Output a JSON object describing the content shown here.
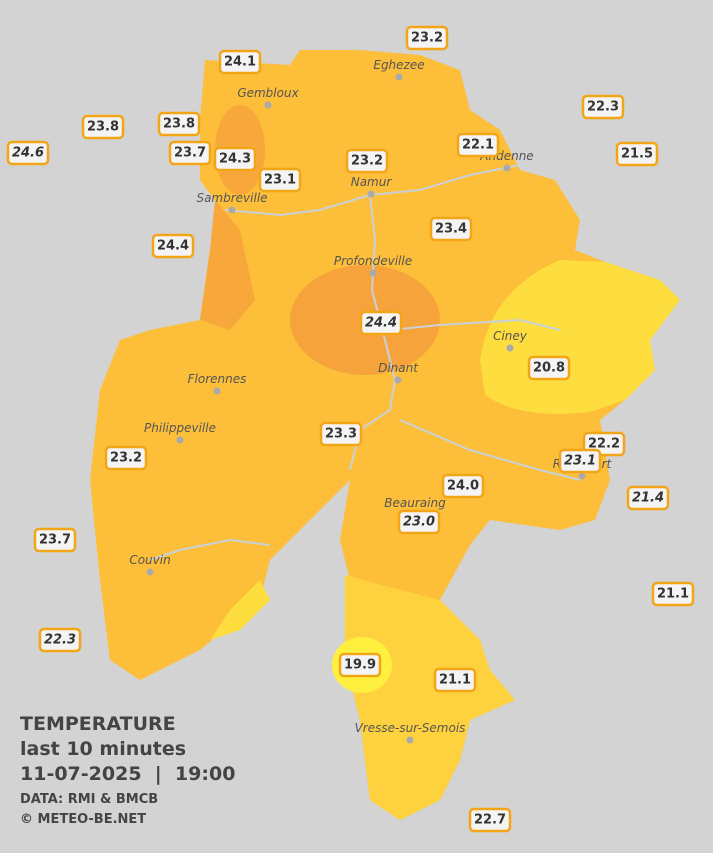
{
  "legend": {
    "title": "TEMPERATURE",
    "subtitle": "last 10 minutes",
    "datetime": "11-07-2025  |  19:00",
    "source": "DATA: RMI & BMCB",
    "copyright": "© METEO-BE.NET"
  },
  "cities": [
    "Eghezee",
    "Gembloux",
    "Andenne",
    "Namur",
    "Sambreville",
    "Profondeville",
    "Ciney",
    "Dinant",
    "Florennes",
    "Philippeville",
    "Couvin",
    "Vresse-sur-Semois",
    "Beauraing",
    "Rochefort"
  ],
  "stations": [
    {
      "label": "24.1"
    },
    {
      "label": "23.2"
    },
    {
      "label": "23.8"
    },
    {
      "label": "23.8"
    },
    {
      "label": "22.3"
    },
    {
      "label": "24.6",
      "italic": true
    },
    {
      "label": "23.7"
    },
    {
      "label": "24.3"
    },
    {
      "label": "23.2"
    },
    {
      "label": "22.1"
    },
    {
      "label": "21.5"
    },
    {
      "label": "23.1"
    },
    {
      "label": "24.4"
    },
    {
      "label": "23.4"
    },
    {
      "label": "24.4",
      "italic": true
    },
    {
      "label": "20.8"
    },
    {
      "label": "23.3"
    },
    {
      "label": "22.2"
    },
    {
      "label": "23.1",
      "italic": true
    },
    {
      "label": "23.2"
    },
    {
      "label": "24.0"
    },
    {
      "label": "21.4",
      "italic": true
    },
    {
      "label": "23.0",
      "italic": true
    },
    {
      "label": "23.7"
    },
    {
      "label": "21.1"
    },
    {
      "label": "22.3",
      "italic": true
    },
    {
      "label": "19.9"
    },
    {
      "label": "21.1"
    },
    {
      "label": "22.7"
    }
  ]
}
